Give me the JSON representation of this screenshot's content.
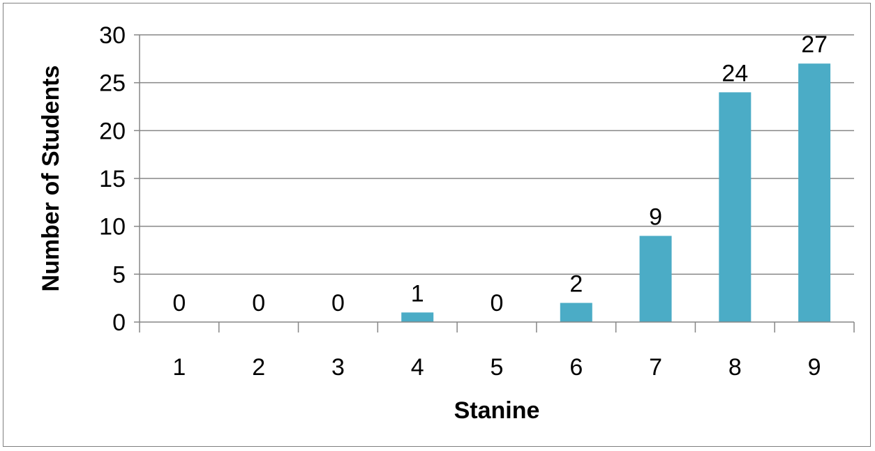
{
  "chart_data": {
    "type": "bar",
    "categories": [
      "1",
      "2",
      "3",
      "4",
      "5",
      "6",
      "7",
      "8",
      "9"
    ],
    "values": [
      0,
      0,
      0,
      1,
      0,
      2,
      9,
      24,
      27
    ],
    "data_labels": [
      "0",
      "0",
      "0",
      "1",
      "0",
      "2",
      "9",
      "24",
      "27"
    ],
    "title": "",
    "xlabel": "Stanine",
    "ylabel": "Number of Students",
    "ylim": [
      0,
      30
    ],
    "yticks": [
      0,
      5,
      10,
      15,
      20,
      25,
      30
    ],
    "grid": true,
    "legend": "none",
    "bar_color": "#4bacc6",
    "grid_color": "#868686"
  }
}
